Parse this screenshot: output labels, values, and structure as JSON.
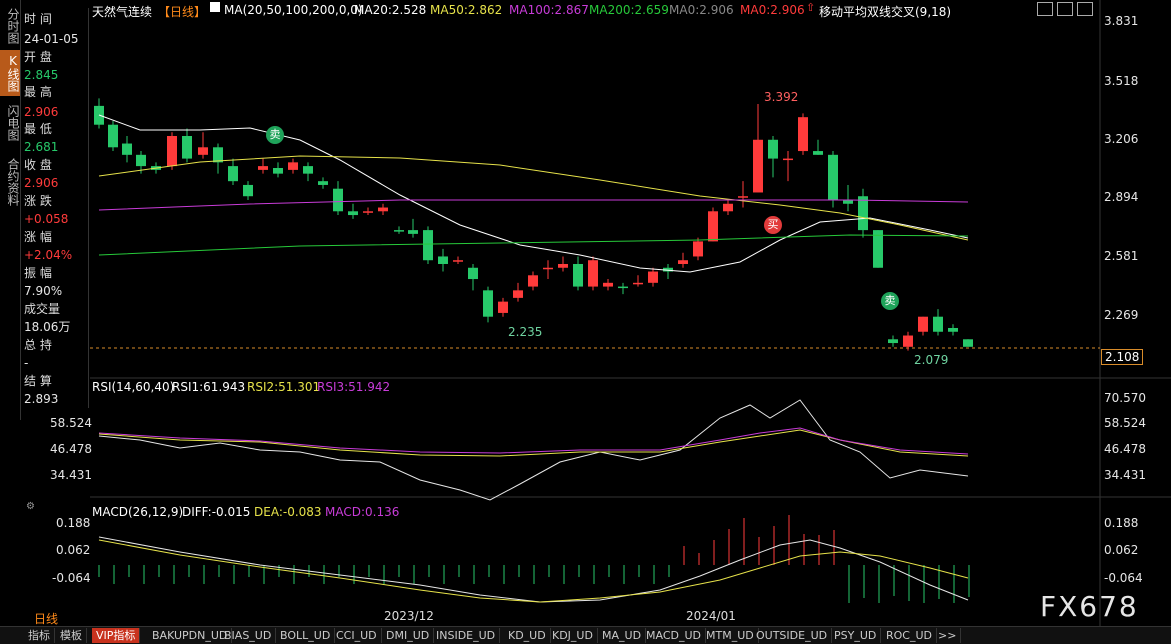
{
  "left_tabs": [
    "分时图",
    "K线图",
    "闪电图",
    "合约资料"
  ],
  "info": {
    "time_label": "时 间",
    "time_value": "24-01-05",
    "open_label": "开 盘",
    "open_value": "2.845",
    "high_label": "最 高",
    "high_value": "2.906",
    "low_label": "最 低",
    "low_value": "2.681",
    "close_label": "收 盘",
    "close_value": "2.906",
    "change_label": "涨 跌",
    "change_value": "+0.058",
    "pct_label": "涨 幅",
    "pct_value": "+2.04%",
    "amp_label": "振 幅",
    "amp_value": "7.90%",
    "vol_label": "成交量",
    "vol_value": "18.06万",
    "oi_label": "总 持",
    "oi_value": "-",
    "settle_label": "结 算",
    "settle_value": "2.893"
  },
  "header": {
    "name": "天然气连续",
    "period": "【日线】",
    "ma_title": "MA(20,50,100,200,0,0)",
    "ma20": "MA20:2.528",
    "ma50": "MA50:2.862",
    "ma100": "MA100:2.867",
    "ma200": "MA200:2.659",
    "ma0a": "MA0:2.906",
    "ma0b": "MA0:2.906",
    "strategy": "移动平均双线交叉(9,18)"
  },
  "price_axis": [
    "3.831",
    "3.518",
    "3.206",
    "2.894",
    "2.581",
    "2.269"
  ],
  "current_price": "2.108",
  "annotations": {
    "high": "3.392",
    "low1": "2.235",
    "low2": "2.079",
    "sell": "卖",
    "buy": "买"
  },
  "rsi": {
    "title": "RSI(14,60,40)",
    "rsi1": "RSI1:61.943",
    "rsi2": "RSI2:51.301",
    "rsi3": "RSI3:51.942",
    "axis_right": [
      "70.570",
      "58.524",
      "46.478",
      "34.431"
    ],
    "axis_left": [
      "58.524",
      "46.478",
      "34.431"
    ]
  },
  "macd": {
    "title": "MACD(26,12,9)",
    "diff": "DIFF:-0.015",
    "dea": "DEA:-0.083",
    "macd": "MACD:0.136",
    "axis_right": [
      "0.188",
      "0.062",
      "-0.064"
    ],
    "axis_left": [
      "0.188",
      "0.062",
      "-0.064"
    ]
  },
  "dates": [
    "2023/12",
    "2024/01"
  ],
  "period_label": "日线",
  "watermark": "FX678",
  "bottom_tabs": [
    "指标",
    "模板",
    "VIP指标",
    "BAKUPDN_UD",
    "BIAS_UD",
    "BOLL_UD",
    "CCI_UD",
    "DMI_UD",
    "INSIDE_UD",
    "KD_UD",
    "KDJ_UD",
    "MA_UD",
    "MACD_UD",
    "MTM_UD",
    "OUTSIDE_UD",
    "PSY_UD",
    "ROC_UD",
    ">>"
  ],
  "colors": {
    "up": "#ff3b3b",
    "down": "#27c96a",
    "ma20": "#ffffff",
    "ma50": "#e6e24a",
    "ma100": "#c83cd8",
    "ma200": "#27c93a",
    "accent": "#b85a1a"
  }
}
